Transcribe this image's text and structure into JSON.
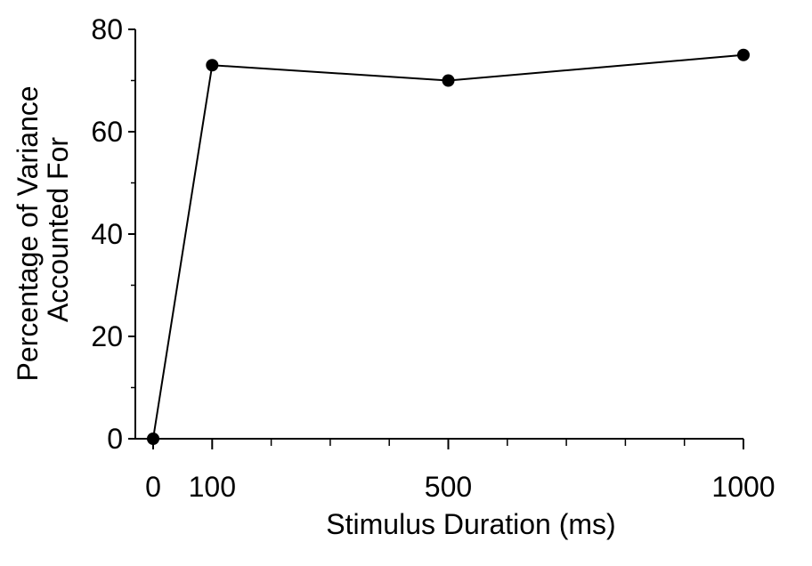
{
  "chart_data": {
    "type": "line",
    "title": "",
    "xlabel": "Stimulus Duration (ms)",
    "ylabel_lines": [
      "Percentage of Variance",
      "Accounted For"
    ],
    "xlim": [
      0,
      1000
    ],
    "ylim": [
      0,
      80
    ],
    "x_ticks": [
      0,
      100,
      500,
      1000
    ],
    "x_minor_ticks": [
      200,
      300,
      400,
      600,
      700,
      800,
      900
    ],
    "y_ticks": [
      0,
      20,
      40,
      60,
      80
    ],
    "y_minor_ticks": [
      10,
      30,
      50,
      70
    ],
    "grid": false,
    "legend": "none",
    "series": [
      {
        "x": [
          0,
          100,
          500,
          1000
        ],
        "y": [
          0,
          73,
          70,
          75
        ]
      }
    ],
    "colors": {
      "line": "#000000",
      "marker": "#000000",
      "axis": "#000000"
    }
  }
}
